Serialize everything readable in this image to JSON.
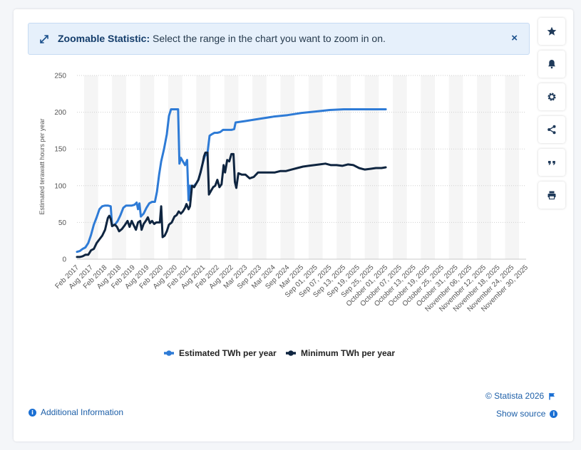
{
  "banner": {
    "title": "Zoomable Statistic:",
    "message": "Select the range in the chart you want to zoom in on.",
    "close_label": "×"
  },
  "sidebar": {
    "buttons": [
      {
        "name": "favorite",
        "icon": "star-icon"
      },
      {
        "name": "notifications",
        "icon": "bell-icon"
      },
      {
        "name": "settings",
        "icon": "gear-icon"
      },
      {
        "name": "share",
        "icon": "share-icon"
      },
      {
        "name": "cite",
        "icon": "quote-icon"
      },
      {
        "name": "print",
        "icon": "printer-icon"
      }
    ]
  },
  "footer": {
    "copyright": "© Statista 2026",
    "additional_info": "Additional Information",
    "show_source": "Show source"
  },
  "chart_data": {
    "type": "line",
    "xlabel": "",
    "ylabel": "Estimated terawatt hours per year",
    "ylim": [
      0,
      250
    ],
    "yticks": [
      0,
      50,
      100,
      150,
      200,
      250
    ],
    "grid": true,
    "legend_position": "bottom-center",
    "x_tick_labels": [
      "Feb 2017",
      "Aug 2017",
      "Feb 2018",
      "Aug 2018",
      "Feb 2019",
      "Aug 2019",
      "Feb 2020",
      "Aug 2020",
      "Feb 2021",
      "Aug 2021",
      "Feb 2022",
      "Aug 2022",
      "Mar 2023",
      "Sep 2023",
      "Mar 2024",
      "Sep 2024",
      "Mar 2025",
      "Sep 01, 2025",
      "Sep 07, 2025",
      "Sep 13, 2025",
      "Sep 19, 2025",
      "Sep 25, 2025",
      "October 01, 2025",
      "October 07, 2025",
      "October 13, 2025",
      "October 19, 2025",
      "October 25, 2025",
      "October 31, 2025",
      "November 06, 2025",
      "November 12, 2025",
      "November 18, 2025",
      "November 24, 2025",
      "November 30, 2025"
    ],
    "series": [
      {
        "name": "Estimated TWh per year",
        "color": "#2e7bd6",
        "points": [
          [
            0,
            10
          ],
          [
            0.2,
            11
          ],
          [
            0.4,
            14
          ],
          [
            0.6,
            16
          ],
          [
            0.8,
            22
          ],
          [
            1,
            33
          ],
          [
            1.2,
            47
          ],
          [
            1.4,
            57
          ],
          [
            1.6,
            68
          ],
          [
            1.8,
            72
          ],
          [
            2,
            73
          ],
          [
            2.2,
            73
          ],
          [
            2.4,
            72
          ],
          [
            2.5,
            46
          ],
          [
            2.7,
            47
          ],
          [
            2.9,
            52
          ],
          [
            3.1,
            60
          ],
          [
            3.3,
            70
          ],
          [
            3.5,
            73
          ],
          [
            3.7,
            73
          ],
          [
            3.9,
            73
          ],
          [
            4.1,
            74
          ],
          [
            4.25,
            77
          ],
          [
            4.35,
            68
          ],
          [
            4.45,
            76
          ],
          [
            4.55,
            58
          ],
          [
            4.75,
            62
          ],
          [
            4.95,
            70
          ],
          [
            5.15,
            76
          ],
          [
            5.35,
            78
          ],
          [
            5.55,
            78
          ],
          [
            5.7,
            92
          ],
          [
            5.85,
            115
          ],
          [
            6.0,
            133
          ],
          [
            6.2,
            150
          ],
          [
            6.4,
            170
          ],
          [
            6.55,
            195
          ],
          [
            6.7,
            204
          ],
          [
            6.9,
            204
          ],
          [
            7.05,
            204
          ],
          [
            7.2,
            204
          ],
          [
            7.3,
            130
          ],
          [
            7.4,
            138
          ],
          [
            7.55,
            133
          ],
          [
            7.7,
            128
          ],
          [
            7.85,
            135
          ],
          [
            7.95,
            80
          ],
          [
            8.05,
            100
          ],
          [
            8.2,
            99
          ],
          [
            8.35,
            100
          ],
          [
            8.5,
            103
          ],
          [
            8.65,
            108
          ],
          [
            8.8,
            118
          ],
          [
            8.95,
            130
          ],
          [
            9.1,
            140
          ],
          [
            9.3,
            145
          ],
          [
            9.45,
            168
          ],
          [
            9.6,
            170
          ],
          [
            9.8,
            172
          ],
          [
            10.0,
            172
          ],
          [
            10.2,
            173
          ],
          [
            10.4,
            176
          ],
          [
            10.7,
            176
          ],
          [
            11.0,
            176
          ],
          [
            11.2,
            177
          ],
          [
            11.3,
            186
          ],
          [
            12,
            188
          ],
          [
            13,
            191
          ],
          [
            14,
            194
          ],
          [
            15,
            196
          ],
          [
            16,
            199
          ],
          [
            17,
            201
          ],
          [
            18,
            203
          ],
          [
            19,
            204
          ],
          [
            20,
            204
          ],
          [
            21,
            204
          ],
          [
            22,
            204
          ]
        ]
      },
      {
        "name": "Minimum TWh per year",
        "color": "#0f2540",
        "points": [
          [
            0,
            3
          ],
          [
            0.2,
            3
          ],
          [
            0.4,
            4
          ],
          [
            0.6,
            6
          ],
          [
            0.8,
            6
          ],
          [
            1,
            12
          ],
          [
            1.2,
            14
          ],
          [
            1.4,
            22
          ],
          [
            1.6,
            27
          ],
          [
            1.8,
            32
          ],
          [
            2,
            40
          ],
          [
            2.1,
            48
          ],
          [
            2.2,
            56
          ],
          [
            2.3,
            59
          ],
          [
            2.4,
            55
          ],
          [
            2.5,
            45
          ],
          [
            2.7,
            47
          ],
          [
            2.85,
            44
          ],
          [
            3.0,
            38
          ],
          [
            3.2,
            41
          ],
          [
            3.4,
            46
          ],
          [
            3.6,
            52
          ],
          [
            3.75,
            44
          ],
          [
            3.9,
            52
          ],
          [
            4.05,
            46
          ],
          [
            4.2,
            40
          ],
          [
            4.35,
            50
          ],
          [
            4.5,
            52
          ],
          [
            4.6,
            40
          ],
          [
            4.75,
            48
          ],
          [
            4.9,
            52
          ],
          [
            5.05,
            57
          ],
          [
            5.2,
            49
          ],
          [
            5.35,
            52
          ],
          [
            5.5,
            48
          ],
          [
            5.65,
            50
          ],
          [
            5.8,
            50
          ],
          [
            5.9,
            50
          ],
          [
            6.0,
            72
          ],
          [
            6.1,
            30
          ],
          [
            6.25,
            32
          ],
          [
            6.4,
            38
          ],
          [
            6.55,
            47
          ],
          [
            6.75,
            50
          ],
          [
            6.95,
            58
          ],
          [
            7.1,
            60
          ],
          [
            7.25,
            65
          ],
          [
            7.4,
            62
          ],
          [
            7.55,
            65
          ],
          [
            7.7,
            70
          ],
          [
            7.8,
            75
          ],
          [
            7.95,
            68
          ],
          [
            8.05,
            72
          ],
          [
            8.2,
            100
          ],
          [
            8.35,
            98
          ],
          [
            8.5,
            103
          ],
          [
            8.65,
            108
          ],
          [
            8.8,
            118
          ],
          [
            8.95,
            130
          ],
          [
            9.05,
            140
          ],
          [
            9.15,
            145
          ],
          [
            9.3,
            145
          ],
          [
            9.4,
            88
          ],
          [
            9.55,
            93
          ],
          [
            9.7,
            98
          ],
          [
            9.85,
            100
          ],
          [
            10.0,
            108
          ],
          [
            10.15,
            98
          ],
          [
            10.3,
            102
          ],
          [
            10.45,
            128
          ],
          [
            10.55,
            118
          ],
          [
            10.7,
            135
          ],
          [
            10.85,
            133
          ],
          [
            11.0,
            143
          ],
          [
            11.15,
            143
          ],
          [
            11.25,
            105
          ],
          [
            11.35,
            97
          ],
          [
            11.5,
            117
          ],
          [
            11.75,
            115
          ],
          [
            12.0,
            115
          ],
          [
            12.3,
            110
          ],
          [
            12.6,
            112
          ],
          [
            12.9,
            118
          ],
          [
            13.3,
            118
          ],
          [
            13.7,
            118
          ],
          [
            14.1,
            118
          ],
          [
            14.5,
            120
          ],
          [
            14.9,
            120
          ],
          [
            15.3,
            122
          ],
          [
            15.7,
            124
          ],
          [
            16.1,
            126
          ],
          [
            16.5,
            127
          ],
          [
            16.9,
            128
          ],
          [
            17.3,
            129
          ],
          [
            17.7,
            130
          ],
          [
            18.1,
            128
          ],
          [
            18.5,
            128
          ],
          [
            18.9,
            127
          ],
          [
            19.3,
            129
          ],
          [
            19.7,
            128
          ],
          [
            20.1,
            124
          ],
          [
            20.5,
            122
          ],
          [
            20.9,
            123
          ],
          [
            21.3,
            124
          ],
          [
            21.7,
            124
          ],
          [
            22,
            125
          ]
        ]
      }
    ]
  }
}
